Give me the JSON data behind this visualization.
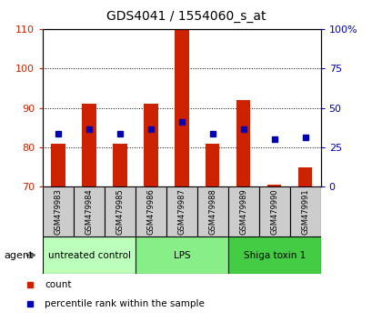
{
  "title": "GDS4041 / 1554060_s_at",
  "samples": [
    "GSM479983",
    "GSM479984",
    "GSM479985",
    "GSM479986",
    "GSM479987",
    "GSM479988",
    "GSM479989",
    "GSM479990",
    "GSM479991"
  ],
  "bar_bottom": 70,
  "bar_tops": [
    81,
    91,
    81,
    91,
    110,
    81,
    92,
    70.5,
    75
  ],
  "blue_dots": [
    83.5,
    84.5,
    83.5,
    84.5,
    86.5,
    83.5,
    84.5,
    82,
    82.5
  ],
  "ylim": [
    70,
    110
  ],
  "yticks_left": [
    70,
    80,
    90,
    100,
    110
  ],
  "right_tick_positions": [
    70,
    80,
    90,
    100,
    110
  ],
  "yticks_right_labels": [
    "0",
    "25",
    "50",
    "75",
    "100%"
  ],
  "left_color": "#cc2200",
  "right_color": "#0000bb",
  "bar_color": "#cc2200",
  "dot_color": "#0000bb",
  "groups": [
    {
      "label": "untreated control",
      "start": 0,
      "end": 3,
      "color": "#bbffbb"
    },
    {
      "label": "LPS",
      "start": 3,
      "end": 6,
      "color": "#88ee88"
    },
    {
      "label": "Shiga toxin 1",
      "start": 6,
      "end": 9,
      "color": "#44cc44"
    }
  ],
  "legend_count_color": "#cc2200",
  "legend_pct_color": "#0000bb",
  "bg_color": "#ffffff",
  "grid_color": "#000000",
  "bar_width": 0.45,
  "subplot_bg": "#cccccc",
  "title_fontsize": 10
}
